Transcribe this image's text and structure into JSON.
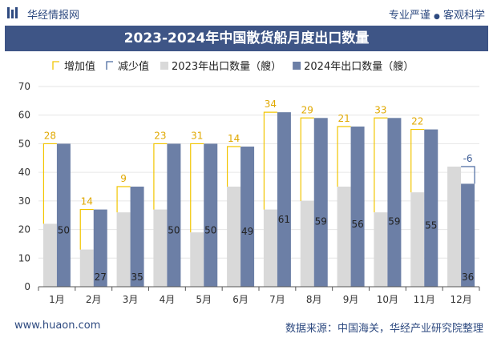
{
  "header": {
    "brand": "华经情报网",
    "tagline_left": "专业严谨",
    "tagline_dot": "●",
    "tagline_right": "客观科学"
  },
  "footer": {
    "website": "www.huaon.com",
    "source_label": "数据来源：",
    "source_a": "中国海关",
    "source_sep": "，",
    "source_b": "华经产业研究院整理"
  },
  "colors": {
    "title_bg": "#3e5586",
    "bar_2023": "#d9d9d9",
    "bar_2024": "#6c7fa6",
    "increase": "#f2c500",
    "decrease": "#4a6aa0",
    "brand": "#2e4a80"
  },
  "chart_data": {
    "type": "bar",
    "title": "2023-2024年中国散货船月度出口数量",
    "categories": [
      "1月",
      "2月",
      "3月",
      "4月",
      "5月",
      "6月",
      "7月",
      "8月",
      "9月",
      "10月",
      "11月",
      "12月"
    ],
    "series": [
      {
        "name": "2023年出口数量（艘）",
        "values": [
          22,
          13,
          26,
          27,
          19,
          35,
          27,
          30,
          35,
          26,
          33,
          42
        ]
      },
      {
        "name": "2024年出口数量（艘）",
        "values": [
          50,
          27,
          35,
          50,
          50,
          49,
          61,
          59,
          56,
          59,
          55,
          36
        ]
      }
    ],
    "change": {
      "increase_name": "增加值",
      "decrease_name": "减少值",
      "values": [
        28,
        14,
        9,
        23,
        31,
        14,
        34,
        29,
        21,
        33,
        22,
        -6
      ],
      "labels": [
        "28",
        "14",
        "9",
        "23",
        "31",
        "14",
        "34",
        "29",
        "21",
        "33",
        "22",
        "-6"
      ]
    },
    "value_labels_2024": [
      "50",
      "27",
      "35",
      "50",
      "50",
      "49",
      "61",
      "59",
      "56",
      "59",
      "55",
      "36"
    ],
    "y_ticks": [
      "0",
      "10",
      "20",
      "30",
      "40",
      "50",
      "60",
      "70"
    ],
    "ylim": [
      0,
      70
    ],
    "legend": "top-left",
    "grid": true
  }
}
